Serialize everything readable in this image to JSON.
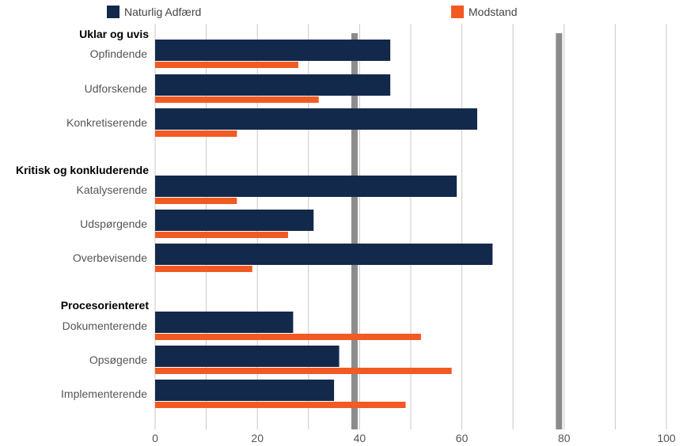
{
  "chart_data": {
    "type": "bar",
    "orientation": "horizontal",
    "legend": {
      "placement": "top",
      "items": [
        {
          "name": "Naturlig Adfærd",
          "color": "#13294b"
        },
        {
          "name": "Modstand",
          "color": "#f15a22"
        }
      ]
    },
    "xlim": [
      0,
      100
    ],
    "xticks": [
      "0",
      "20",
      "40",
      "60",
      "80",
      "100"
    ],
    "grid": true,
    "reference_lines": [
      39,
      79
    ],
    "groups": [
      {
        "title": "Uklar og uvis",
        "categories": [
          "Opfindende",
          "Udforskende",
          "Konkretiserende"
        ]
      },
      {
        "title": "Kritisk og konkluderende",
        "categories": [
          "Katalyserende",
          "Udspørgende",
          "Overbevisende"
        ]
      },
      {
        "title": "Procesorienteret",
        "categories": [
          "Dokumenterende",
          "Opsøgende",
          "Implementerende"
        ]
      }
    ],
    "series": [
      {
        "name": "Naturlig Adfærd",
        "color": "#13294b",
        "values": [
          46,
          46,
          63,
          59,
          31,
          66,
          27,
          36,
          35
        ]
      },
      {
        "name": "Modstand",
        "color": "#f15a22",
        "values": [
          28,
          32,
          16,
          16,
          26,
          19,
          52,
          58,
          49
        ]
      }
    ]
  }
}
